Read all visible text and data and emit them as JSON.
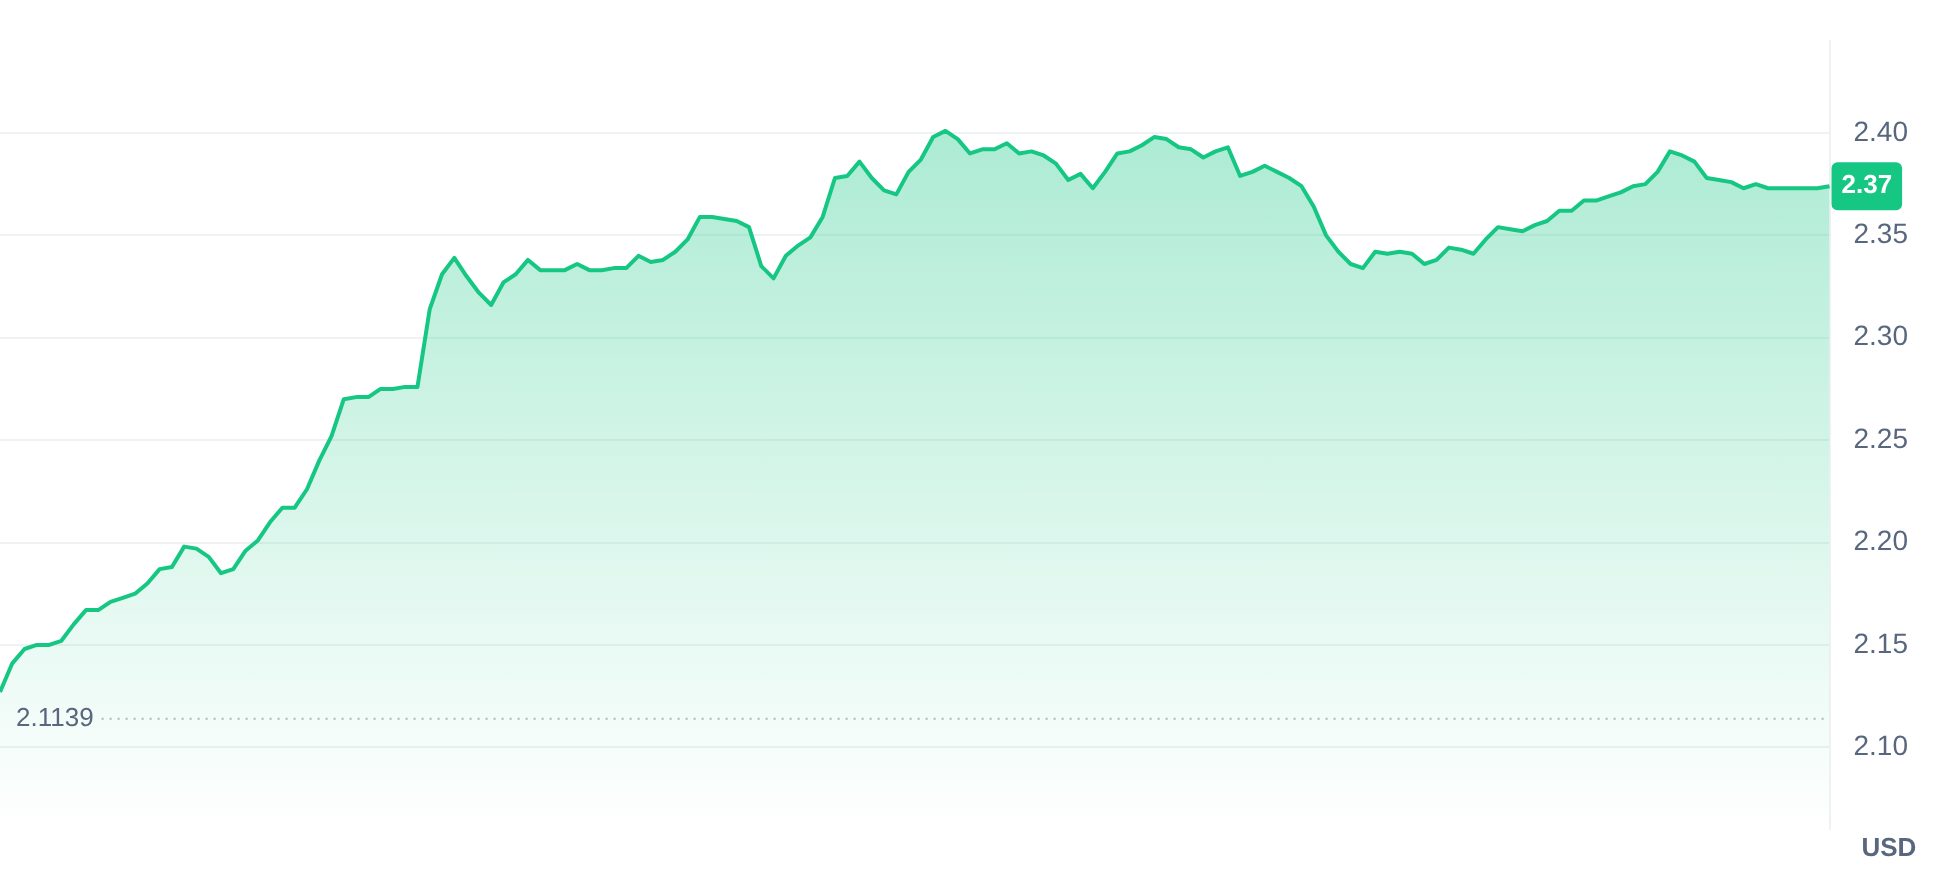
{
  "chart_data": {
    "type": "area",
    "ylabel": "USD",
    "categories": [
      null,
      null,
      null,
      null,
      null,
      null,
      null,
      null,
      null,
      null,
      null,
      null,
      null,
      null,
      null,
      null,
      null,
      null,
      null,
      null,
      null,
      null,
      null,
      null,
      null,
      null,
      null,
      null,
      null,
      null,
      null,
      null,
      null,
      null,
      null,
      null,
      null,
      null,
      null,
      null,
      null,
      null,
      null,
      null,
      null,
      null,
      null,
      null,
      null,
      null,
      null,
      null,
      null,
      null,
      null,
      null,
      null,
      null,
      null,
      null,
      null,
      null,
      null,
      null,
      null,
      null,
      null,
      null,
      null,
      null,
      null,
      null,
      null,
      null,
      null,
      null,
      null,
      null,
      null,
      null,
      null,
      null,
      null,
      null,
      null,
      null,
      null,
      null,
      null,
      null,
      null,
      null,
      null,
      null,
      null,
      null,
      null,
      null,
      null,
      null,
      null,
      null,
      null,
      null,
      null,
      null,
      null,
      null,
      null,
      null,
      null,
      null,
      null,
      null,
      null,
      null,
      null,
      null,
      null,
      null,
      null,
      null,
      null,
      null,
      null,
      null,
      null,
      null,
      null,
      null,
      null,
      null,
      null,
      null,
      null,
      null,
      null,
      null,
      null,
      null,
      null,
      null,
      null,
      null,
      null,
      null,
      null,
      null,
      null,
      null
    ],
    "series": [
      {
        "color": "#16c784",
        "values": [
          2.127,
          2.141,
          2.148,
          2.15,
          2.15,
          2.152,
          2.16,
          2.167,
          2.167,
          2.171,
          2.173,
          2.175,
          2.18,
          2.187,
          2.188,
          2.198,
          2.197,
          2.193,
          2.185,
          2.187,
          2.196,
          2.201,
          2.21,
          2.217,
          2.217,
          2.226,
          2.24,
          2.252,
          2.27,
          2.271,
          2.271,
          2.275,
          2.275,
          2.276,
          2.276,
          2.314,
          2.331,
          2.339,
          2.33,
          2.322,
          2.316,
          2.327,
          2.331,
          2.338,
          2.333,
          2.333,
          2.333,
          2.336,
          2.333,
          2.333,
          2.334,
          2.334,
          2.34,
          2.337,
          2.338,
          2.342,
          2.348,
          2.359,
          2.359,
          2.358,
          2.357,
          2.354,
          2.335,
          2.329,
          2.34,
          2.345,
          2.349,
          2.359,
          2.378,
          2.379,
          2.386,
          2.378,
          2.372,
          2.37,
          2.381,
          2.387,
          2.398,
          2.401,
          2.397,
          2.39,
          2.392,
          2.392,
          2.395,
          2.39,
          2.391,
          2.389,
          2.385,
          2.377,
          2.38,
          2.373,
          2.381,
          2.39,
          2.391,
          2.394,
          2.398,
          2.397,
          2.393,
          2.392,
          2.388,
          2.391,
          2.393,
          2.379,
          2.381,
          2.384,
          2.381,
          2.378,
          2.374,
          2.364,
          2.35,
          2.342,
          2.336,
          2.334,
          2.342,
          2.341,
          2.342,
          2.341,
          2.336,
          2.338,
          2.344,
          2.343,
          2.341,
          2.348,
          2.354,
          2.353,
          2.352,
          2.355,
          2.357,
          2.362,
          2.362,
          2.367,
          2.367,
          2.369,
          2.371,
          2.374,
          2.375,
          2.381,
          2.391,
          2.389,
          2.386,
          2.378,
          2.377,
          2.376,
          2.373,
          2.375,
          2.373,
          2.373,
          2.373,
          2.373,
          2.373,
          2.374
        ]
      }
    ],
    "ylim": [
      2.06,
      2.445
    ],
    "yticks": [
      {
        "value": 2.1,
        "label": "2.10"
      },
      2.15,
      {
        "value": 2.2,
        "label": "2.20"
      },
      2.25,
      {
        "value": 2.3,
        "label": "2.30"
      },
      2.35,
      {
        "value": 2.4,
        "label": "2.40"
      }
    ],
    "grid": "y",
    "legend": false,
    "marker": "none",
    "line_style": "solid",
    "ref_lines": [
      {
        "axis": "y",
        "value": 2.1139,
        "label": "2.1139",
        "line_style": "dotted"
      }
    ],
    "annotations": [
      {
        "text": "2.37",
        "y": 2.374
      }
    ]
  }
}
